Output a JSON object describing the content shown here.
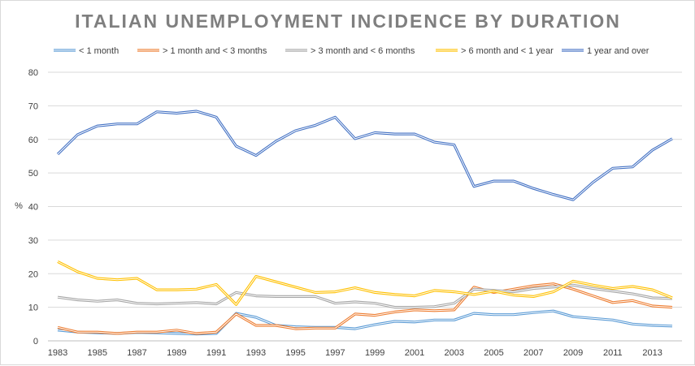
{
  "chart_data": {
    "type": "line",
    "title": "ITALIAN UNEMPLOYMENT INCIDENCE BY DURATION",
    "xlabel": "",
    "ylabel": "%",
    "ylim": [
      0,
      80
    ],
    "yticks": [
      0,
      10,
      20,
      30,
      40,
      50,
      60,
      70,
      80
    ],
    "x": [
      1983,
      1984,
      1985,
      1986,
      1987,
      1988,
      1989,
      1990,
      1991,
      1992,
      1993,
      1994,
      1995,
      1996,
      1997,
      1998,
      1999,
      2000,
      2001,
      2002,
      2003,
      2004,
      2005,
      2006,
      2007,
      2008,
      2009,
      2010,
      2011,
      2012,
      2013,
      2014
    ],
    "xticks": [
      "1983",
      "1985",
      "1987",
      "1989",
      "1991",
      "1993",
      "1995",
      "1997",
      "1999",
      "2001",
      "2003",
      "2005",
      "2007",
      "2009",
      "2011",
      "2013"
    ],
    "grid": true,
    "legend_position": "top",
    "series": [
      {
        "name": "< 1 month",
        "color": "#5b9bd5",
        "values": [
          3.2,
          2.6,
          2.4,
          2.2,
          2.5,
          2.4,
          2.2,
          2.0,
          2.2,
          8.2,
          7.0,
          4.6,
          4.2,
          4.0,
          4.0,
          3.6,
          4.8,
          5.8,
          5.6,
          6.2,
          6.2,
          8.2,
          7.8,
          7.8,
          8.4,
          8.9,
          7.2,
          6.7,
          6.2,
          5.0,
          4.6,
          4.4
        ]
      },
      {
        "name": "> 1 month and < 3 months",
        "color": "#ed7d31",
        "values": [
          4.0,
          2.6,
          2.6,
          2.2,
          2.6,
          2.6,
          3.2,
          2.2,
          2.6,
          8.0,
          4.6,
          4.6,
          3.6,
          3.8,
          3.8,
          8.0,
          7.6,
          8.6,
          9.2,
          9.0,
          9.2,
          16.0,
          14.4,
          15.4,
          16.4,
          17.0,
          15.4,
          13.4,
          11.4,
          12.0,
          10.4,
          10.0
        ]
      },
      {
        "name": "> 3 month and < 6 months",
        "color": "#a5a5a5",
        "values": [
          13.0,
          12.2,
          11.8,
          12.2,
          11.2,
          11.0,
          11.2,
          11.4,
          11.0,
          14.4,
          13.4,
          13.2,
          13.2,
          13.2,
          11.2,
          11.6,
          11.2,
          10.0,
          10.0,
          10.2,
          11.2,
          15.4,
          15.0,
          14.6,
          15.6,
          16.0,
          16.6,
          15.6,
          14.8,
          14.0,
          12.8,
          12.6
        ]
      },
      {
        "name": "> 6 month and < 1 year",
        "color": "#ffc000",
        "values": [
          23.6,
          20.6,
          18.6,
          18.2,
          18.6,
          15.2,
          15.2,
          15.4,
          16.8,
          10.8,
          19.2,
          17.6,
          16.0,
          14.4,
          14.6,
          15.8,
          14.4,
          13.8,
          13.4,
          15.0,
          14.6,
          13.8,
          14.8,
          13.6,
          13.2,
          14.6,
          17.8,
          16.6,
          15.6,
          16.2,
          15.2,
          12.8
        ]
      },
      {
        "name": "1 year and over",
        "color": "#4472c4",
        "values": [
          55.6,
          61.4,
          64.0,
          64.6,
          64.6,
          68.2,
          67.8,
          68.4,
          66.6,
          58.0,
          55.2,
          59.4,
          62.6,
          64.2,
          66.6,
          60.2,
          62.0,
          61.6,
          61.6,
          59.2,
          58.4,
          46.0,
          47.6,
          47.6,
          45.4,
          43.6,
          42.0,
          47.2,
          51.4,
          51.8,
          56.8,
          60.2
        ]
      }
    ]
  }
}
